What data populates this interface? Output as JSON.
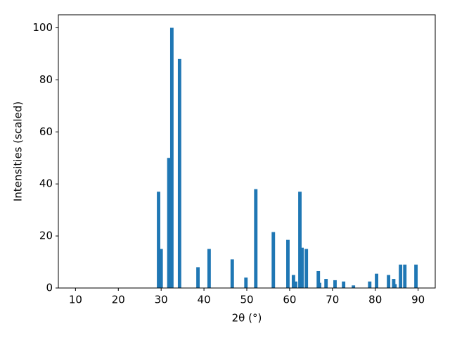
{
  "chart_data": {
    "type": "bar",
    "xlabel": "2θ (°)",
    "ylabel": "Intensities (scaled)",
    "x": [
      29.4,
      30.0,
      31.8,
      32.5,
      34.3,
      38.6,
      41.2,
      46.6,
      49.8,
      52.1,
      56.2,
      59.6,
      60.9,
      61.4,
      62.4,
      62.9,
      63.9,
      66.7,
      67.0,
      68.5,
      70.6,
      72.6,
      74.9,
      78.7,
      80.3,
      83.1,
      84.3,
      84.6,
      85.9,
      86.9,
      89.5
    ],
    "values": [
      37,
      15,
      50,
      100,
      88,
      8,
      15,
      11,
      4,
      38,
      21.5,
      18.5,
      5,
      2.5,
      37,
      15.5,
      15,
      6.5,
      2,
      3.5,
      3,
      2.5,
      1,
      2.5,
      5.5,
      5,
      3.5,
      1.5,
      9,
      9,
      9
    ],
    "color": "#1f77b4",
    "xlim": [
      6,
      94
    ],
    "xticks": [
      10,
      20,
      30,
      40,
      50,
      60,
      70,
      80,
      90
    ],
    "ylim": [
      0,
      105
    ],
    "yticks": [
      0,
      20,
      40,
      60,
      80,
      100
    ],
    "grid": false
  }
}
